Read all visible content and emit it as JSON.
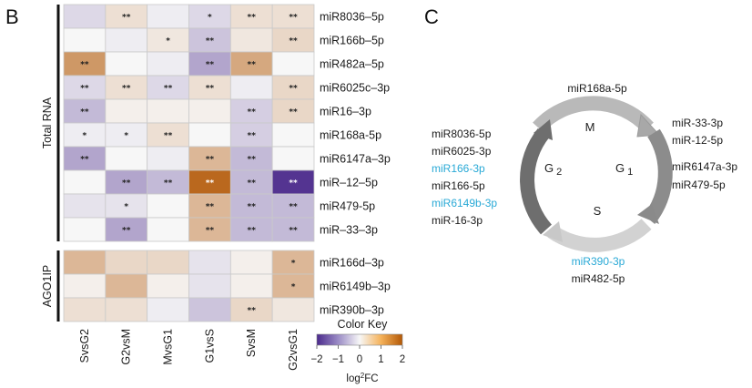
{
  "panel_b": {
    "letter": "B",
    "groups": [
      {
        "label": "Total RNA",
        "rows": 10
      },
      {
        "label": "AGO1IP",
        "rows": 3
      }
    ],
    "columns": [
      "SvsG2",
      "G2vsM",
      "MvsG1",
      "G1vsS",
      "SvsM",
      "G2vsG1"
    ],
    "rows": [
      "miR8036–5p",
      "miR166b–5p",
      "miR482a–5p",
      "miR6025c–3p",
      "miR16–3p",
      "miR168a-5p",
      "miR6147a–3p",
      "miR–12–5p",
      "miR479-5p",
      "miR–33–3p",
      "miR166d–3p",
      "miR6149b–3p",
      "miR390b–3p"
    ],
    "values": [
      [
        -0.3,
        0.3,
        -0.1,
        -0.3,
        0.3,
        0.3
      ],
      [
        0.0,
        -0.1,
        0.2,
        -0.5,
        0.2,
        0.4
      ],
      [
        1.2,
        0.0,
        -0.1,
        -0.8,
        1.0,
        0.0
      ],
      [
        -0.3,
        0.3,
        -0.3,
        0.3,
        -0.1,
        0.4
      ],
      [
        -0.6,
        0.1,
        0.1,
        0.1,
        -0.4,
        0.4
      ],
      [
        -0.1,
        -0.1,
        0.3,
        0.0,
        -0.4,
        0.0
      ],
      [
        -0.8,
        0.0,
        -0.1,
        0.8,
        -0.6,
        0.0
      ],
      [
        0.0,
        -0.8,
        -0.6,
        1.8,
        -0.6,
        -1.9
      ],
      [
        -0.2,
        -0.2,
        0.0,
        0.8,
        -0.6,
        -0.6
      ],
      [
        0.0,
        -0.8,
        0.0,
        0.8,
        -0.6,
        -0.6
      ],
      [
        0.8,
        0.4,
        0.4,
        -0.2,
        0.1,
        0.8
      ],
      [
        0.1,
        0.8,
        0.1,
        -0.2,
        0.1,
        0.8
      ],
      [
        0.3,
        0.3,
        -0.1,
        -0.5,
        0.4,
        0.2
      ]
    ],
    "stars": [
      [
        "",
        "**",
        "",
        "*",
        "**",
        "**"
      ],
      [
        "",
        "",
        "*",
        "**",
        "",
        "**"
      ],
      [
        "**",
        "",
        "",
        "**",
        "**",
        ""
      ],
      [
        "**",
        "**",
        "**",
        "**",
        "",
        "**"
      ],
      [
        "**",
        "",
        "",
        "",
        "**",
        "**"
      ],
      [
        "*",
        "*",
        "**",
        "",
        "**",
        ""
      ],
      [
        "**",
        "",
        "",
        "**",
        "**",
        ""
      ],
      [
        "",
        "**",
        "**",
        "**",
        "**",
        "**"
      ],
      [
        "",
        "*",
        "",
        "**",
        "**",
        "**"
      ],
      [
        "",
        "**",
        "",
        "**",
        "**",
        "**"
      ],
      [
        "",
        "",
        "",
        "",
        "",
        "*"
      ],
      [
        "",
        "",
        "",
        "",
        "",
        "*"
      ],
      [
        "",
        "",
        "",
        "",
        "**",
        ""
      ]
    ],
    "color_key": {
      "title": "Color  Key",
      "ticks": [
        "−2",
        "−1",
        "0",
        "1",
        "2"
      ],
      "xlabel_main": "log",
      "xlabel_sup": "2",
      "xlabel_tail": "FC",
      "range": [
        -2,
        2
      ],
      "colors": {
        "low": "#4b2a8c",
        "mid": "#f7f7f7",
        "high": "#b35806"
      }
    }
  },
  "panel_c": {
    "letter": "C",
    "phases": {
      "m": "M",
      "g2_main": "G",
      "g2_sub": "2",
      "g1_main": "G",
      "g1_sub": "1",
      "s": "S"
    },
    "top": [
      {
        "text": "miR168a-5p",
        "highlight": false
      }
    ],
    "right": [
      {
        "text": "miR-33-3p",
        "highlight": false
      },
      {
        "text": "miR-12-5p",
        "highlight": false
      },
      {
        "text": "miR6147a-3p",
        "highlight": false
      },
      {
        "text": "miR479-5p",
        "highlight": false
      }
    ],
    "left": [
      {
        "text": "miR8036-5p",
        "highlight": false
      },
      {
        "text": "miR6025-3p",
        "highlight": false
      },
      {
        "text": "miR166-3p",
        "highlight": true
      },
      {
        "text": "miR166-5p",
        "highlight": false
      },
      {
        "text": "miR6149b-3p",
        "highlight": true
      },
      {
        "text": "miR-16-3p",
        "highlight": false
      }
    ],
    "bottom": [
      {
        "text": "miR390-3p",
        "highlight": true
      },
      {
        "text": "miR482-5p",
        "highlight": false
      }
    ],
    "colors": {
      "normal": "#1a1a1a",
      "highlight": "#29a9d6"
    }
  }
}
